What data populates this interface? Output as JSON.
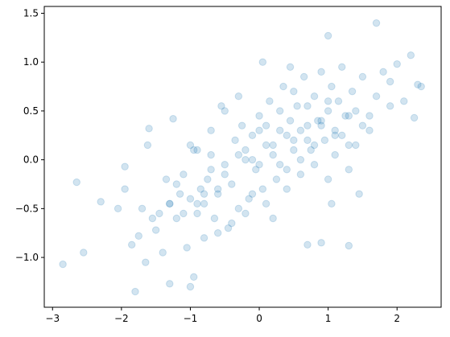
{
  "chart_data": {
    "type": "scatter",
    "color": "#1f77b4",
    "alpha": 0.2,
    "xlim": [
      -3.12,
      2.64
    ],
    "ylim": [
      -1.51,
      1.57
    ],
    "xticks": [
      {
        "value": -3,
        "label": "−3"
      },
      {
        "value": -2,
        "label": "−2"
      },
      {
        "value": -1,
        "label": "−1"
      },
      0,
      1,
      2
    ],
    "yticks": [
      {
        "value": -1.0,
        "label": "−1.0"
      },
      {
        "value": -0.5,
        "label": "−0.5"
      },
      {
        "value": 0.0,
        "label": "0.0"
      },
      {
        "value": 0.5,
        "label": "0.5"
      },
      {
        "value": 1.0,
        "label": "1.0"
      },
      {
        "value": 1.5,
        "label": "1.5"
      }
    ],
    "x": [
      -2.85,
      -2.65,
      -2.55,
      -2.3,
      -2.05,
      -1.95,
      -1.95,
      -1.8,
      -1.6,
      -1.62,
      1.7,
      1.0,
      2.3,
      2.35,
      2.2,
      2.25,
      1.3,
      -1.3,
      -1.0,
      -0.95,
      0.7,
      0.9,
      1.05,
      1.45,
      0.45,
      0.05,
      -1.85,
      -1.75,
      -1.7,
      -1.65,
      -1.55,
      -1.5,
      -1.45,
      -1.4,
      -1.35,
      -1.3,
      -1.25,
      -1.2,
      -1.15,
      -1.1,
      -1.05,
      -1.0,
      -0.95,
      -0.9,
      -0.85,
      -0.8,
      -0.75,
      -0.7,
      -0.65,
      -0.6,
      -0.55,
      -0.5,
      -0.45,
      -0.4,
      -0.35,
      -0.3,
      -0.25,
      -0.2,
      -0.15,
      -0.1,
      -0.05,
      0.0,
      0.05,
      0.1,
      0.15,
      0.2,
      0.25,
      0.3,
      0.35,
      0.4,
      0.45,
      0.5,
      0.55,
      0.6,
      0.65,
      0.7,
      0.75,
      0.8,
      0.85,
      0.9,
      0.95,
      1.0,
      1.05,
      1.1,
      1.15,
      1.2,
      1.25,
      1.3,
      1.35,
      1.4,
      1.5,
      1.6,
      1.7,
      1.8,
      1.9,
      2.0,
      2.1,
      -1.2,
      -1.1,
      -1.0,
      -0.9,
      -0.8,
      -0.7,
      -0.6,
      -0.5,
      -0.4,
      -0.3,
      -0.2,
      -0.1,
      0.0,
      0.1,
      0.2,
      0.3,
      0.4,
      0.5,
      0.6,
      0.7,
      0.8,
      0.9,
      1.0,
      1.1,
      1.2,
      1.3,
      1.4,
      1.5,
      -0.9,
      -0.7,
      -0.5,
      -0.3,
      -0.1,
      0.1,
      0.3,
      0.5,
      0.7,
      0.9,
      1.1,
      1.3,
      -0.6,
      -0.2,
      0.2,
      0.6,
      1.0,
      -1.3,
      -0.8,
      0.0,
      0.4,
      0.8,
      1.6,
      1.9
    ],
    "y": [
      -1.07,
      -0.23,
      -0.95,
      -0.43,
      -0.5,
      -0.07,
      -0.3,
      -1.35,
      0.32,
      0.15,
      1.4,
      1.27,
      0.77,
      0.75,
      1.07,
      0.43,
      -0.88,
      -1.27,
      -1.3,
      -1.2,
      -0.87,
      -0.85,
      -0.45,
      -0.35,
      0.95,
      1.0,
      -0.87,
      -0.78,
      -0.5,
      -1.05,
      -0.6,
      -0.72,
      -0.55,
      -0.95,
      -0.2,
      -0.45,
      0.42,
      -0.6,
      -0.35,
      -0.15,
      -0.9,
      -0.4,
      0.1,
      -0.55,
      -0.3,
      -0.45,
      -0.2,
      0.05,
      -0.6,
      -0.35,
      0.55,
      -0.15,
      -0.7,
      -0.25,
      0.2,
      -0.5,
      0.35,
      0.1,
      -0.4,
      0.0,
      -0.1,
      0.45,
      -0.3,
      0.15,
      0.6,
      0.05,
      -0.2,
      0.3,
      0.75,
      -0.1,
      0.4,
      0.2,
      0.55,
      0.0,
      0.85,
      0.35,
      0.1,
      0.65,
      0.4,
      0.9,
      0.2,
      0.5,
      0.75,
      0.3,
      0.6,
      0.95,
      0.45,
      0.15,
      0.7,
      0.5,
      0.85,
      0.3,
      0.65,
      0.9,
      0.55,
      0.98,
      0.6,
      -0.25,
      -0.55,
      0.15,
      -0.45,
      -0.8,
      0.3,
      -0.75,
      0.5,
      -0.65,
      0.65,
      -0.55,
      -0.35,
      0.3,
      -0.45,
      -0.6,
      0.5,
      -0.3,
      0.7,
      -0.15,
      0.55,
      -0.05,
      0.35,
      -0.2,
      0.05,
      0.25,
      -0.1,
      0.15,
      0.35,
      0.1,
      -0.1,
      -0.05,
      0.05,
      0.25,
      0.35,
      -0.05,
      0.1,
      0.2,
      0.4,
      0.25,
      0.45,
      -0.3,
      0.0,
      0.15,
      0.3,
      0.6,
      -0.45,
      -0.35,
      -0.05,
      0.25,
      0.15,
      0.45,
      0.8
    ]
  }
}
